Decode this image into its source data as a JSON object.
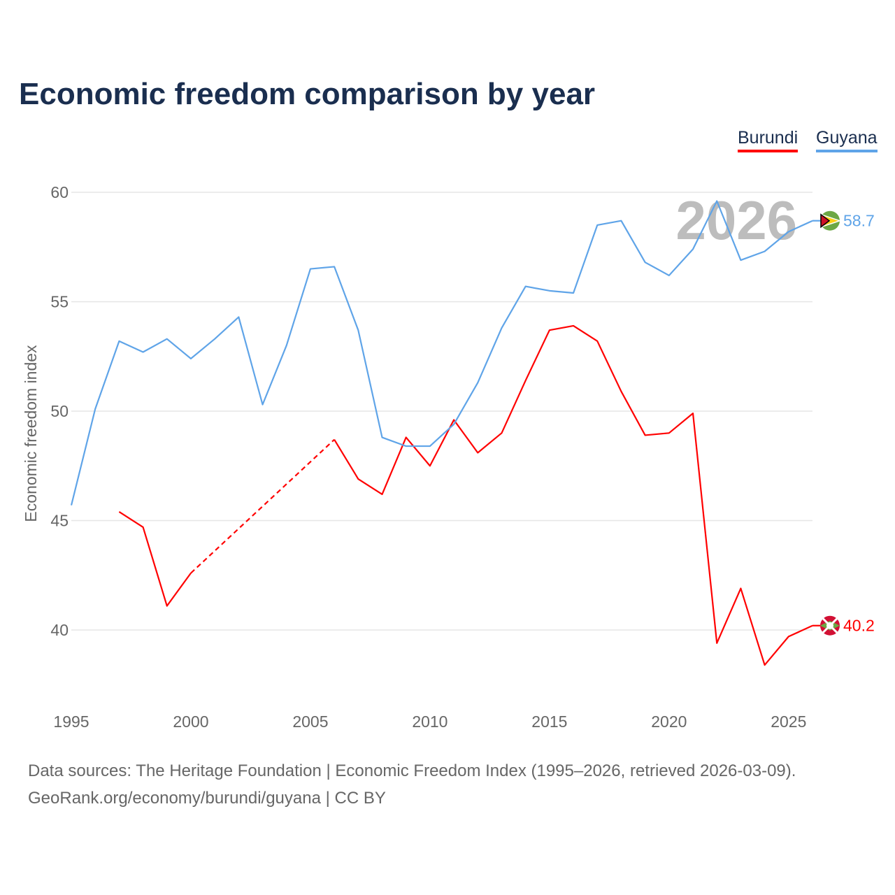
{
  "title": "Economic freedom comparison by year",
  "footer": {
    "line1": "Data sources: The Heritage Foundation | Economic Freedom Index (1995–2026, retrieved 2026-03-09).",
    "line2": "GeoRank.org/economy/burundi/guyana | CC BY"
  },
  "chart_data": {
    "type": "line",
    "title": "Economic freedom comparison by year",
    "ylabel": "Economic freedom index",
    "xlabel": "",
    "xlim": [
      1995,
      2026
    ],
    "ylim": [
      37,
      61
    ],
    "x_ticks": [
      "1995",
      "2000",
      "2005",
      "2010",
      "2015",
      "2020",
      "2025"
    ],
    "y_ticks": [
      "40",
      "45",
      "50",
      "55",
      "60"
    ],
    "watermark_year": "2026",
    "legend_position": "top-right",
    "series": [
      {
        "name": "Burundi",
        "color": "#ff0000",
        "end_label": "40.2",
        "flag_icon": "burundi-flag-icon",
        "x": [
          1997,
          1998,
          1999,
          2000,
          2006,
          2007,
          2008,
          2009,
          2010,
          2011,
          2012,
          2013,
          2014,
          2015,
          2016,
          2017,
          2018,
          2019,
          2020,
          2021,
          2022,
          2023,
          2024,
          2025,
          2026
        ],
        "values": [
          45.4,
          44.7,
          41.1,
          42.6,
          48.7,
          46.9,
          46.2,
          48.8,
          47.5,
          49.6,
          48.1,
          49.0,
          51.4,
          53.7,
          53.9,
          53.2,
          50.9,
          48.9,
          49.0,
          49.9,
          39.4,
          41.9,
          38.4,
          39.7,
          40.2
        ],
        "missing_gap": [
          2000,
          2006
        ]
      },
      {
        "name": "Guyana",
        "color": "#5fa4e8",
        "end_label": "58.7",
        "flag_icon": "guyana-flag-icon",
        "x": [
          1995,
          1996,
          1997,
          1998,
          1999,
          2000,
          2001,
          2002,
          2003,
          2004,
          2005,
          2006,
          2007,
          2008,
          2009,
          2010,
          2011,
          2012,
          2013,
          2014,
          2015,
          2016,
          2017,
          2018,
          2019,
          2020,
          2021,
          2022,
          2023,
          2024,
          2025,
          2026
        ],
        "values": [
          45.7,
          50.1,
          53.2,
          52.7,
          53.3,
          52.4,
          53.3,
          54.3,
          50.3,
          53.0,
          56.5,
          56.6,
          53.7,
          48.8,
          48.4,
          48.4,
          49.4,
          51.3,
          53.8,
          55.7,
          55.5,
          55.4,
          58.5,
          58.7,
          56.8,
          56.2,
          57.4,
          59.6,
          56.9,
          57.3,
          58.2,
          58.7
        ]
      }
    ]
  }
}
